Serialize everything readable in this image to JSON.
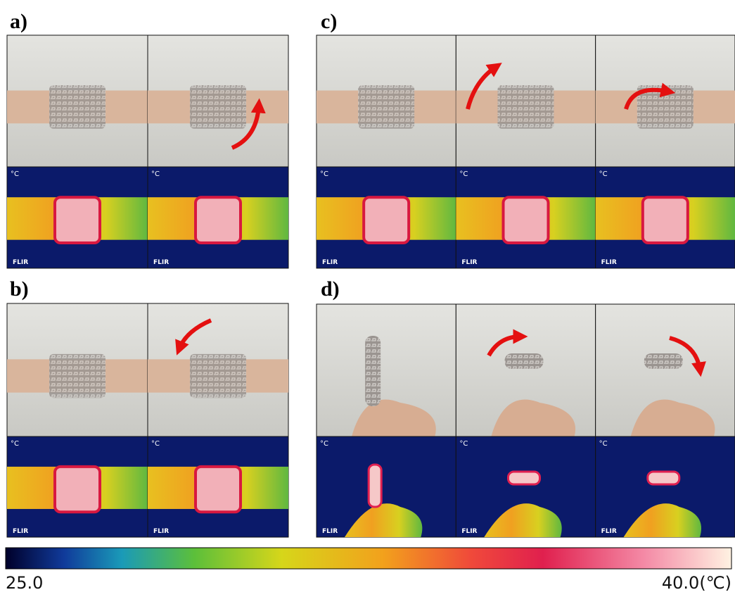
{
  "panels": [
    {
      "label": "a)"
    },
    {
      "label": "b)"
    },
    {
      "label": "c)"
    },
    {
      "label": "d)"
    }
  ],
  "thermal_unit": "°C",
  "thermal_logo": "FLIR",
  "colorbar": {
    "min_label": "25.0",
    "max_label": "40.0(℃)"
  }
}
